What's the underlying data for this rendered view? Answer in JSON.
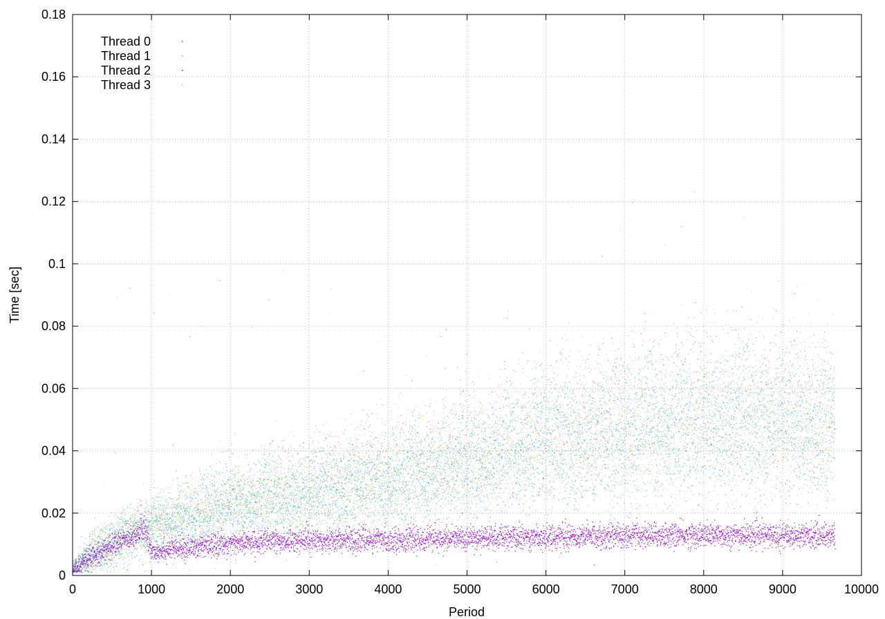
{
  "chart_data": {
    "type": "scatter",
    "xlabel": "Period",
    "ylabel": "Time [sec]",
    "xlim": [
      0,
      10000
    ],
    "ylim": [
      0,
      0.18
    ],
    "xticks": [
      "0",
      "1000",
      "2000",
      "3000",
      "4000",
      "5000",
      "6000",
      "7000",
      "8000",
      "9000",
      "10000"
    ],
    "yticks": [
      "0",
      "0.02",
      "0.04",
      "0.06",
      "0.08",
      "0.1",
      "0.12",
      "0.14",
      "0.16",
      "0.18"
    ],
    "grid": true,
    "legend_position": "top-left",
    "series": [
      {
        "name": "Thread 0",
        "color": "#009e73",
        "x_range": [
          0,
          9660
        ],
        "trend": [
          [
            0,
            0.002
          ],
          [
            300,
            0.008
          ],
          [
            1000,
            0.016
          ],
          [
            2000,
            0.022
          ],
          [
            3000,
            0.026
          ],
          [
            4000,
            0.03
          ],
          [
            5000,
            0.035
          ],
          [
            6000,
            0.042
          ],
          [
            7000,
            0.046
          ],
          [
            8000,
            0.048
          ],
          [
            9000,
            0.048
          ],
          [
            9660,
            0.047
          ]
        ]
      },
      {
        "name": "Thread 1",
        "color": "#56b4e9",
        "x_range": [
          0,
          9660
        ],
        "trend": [
          [
            0,
            0.002
          ],
          [
            300,
            0.008
          ],
          [
            1000,
            0.016
          ],
          [
            2000,
            0.021
          ],
          [
            3000,
            0.026
          ],
          [
            4000,
            0.031
          ],
          [
            5000,
            0.036
          ],
          [
            6000,
            0.043
          ],
          [
            7000,
            0.047
          ],
          [
            8000,
            0.05
          ],
          [
            9000,
            0.051
          ],
          [
            9660,
            0.048
          ]
        ]
      },
      {
        "name": "Thread 2",
        "color": "#9400d3",
        "x_range": [
          0,
          9660
        ],
        "trend": [
          [
            0,
            0.002
          ],
          [
            300,
            0.007
          ],
          [
            900,
            0.015
          ],
          [
            1000,
            0.008
          ],
          [
            1500,
            0.009
          ],
          [
            2000,
            0.0105
          ],
          [
            3000,
            0.0115
          ],
          [
            4000,
            0.0115
          ],
          [
            5000,
            0.012
          ],
          [
            6000,
            0.0125
          ],
          [
            7000,
            0.013
          ],
          [
            8000,
            0.013
          ],
          [
            9000,
            0.013
          ],
          [
            9660,
            0.013
          ]
        ]
      },
      {
        "name": "Thread 3",
        "color": "#e6b04a",
        "x_range": [
          0,
          9660
        ],
        "trend": [
          [
            0,
            0.002
          ],
          [
            300,
            0.008
          ],
          [
            1000,
            0.016
          ],
          [
            2000,
            0.022
          ],
          [
            3000,
            0.027
          ],
          [
            4000,
            0.032
          ],
          [
            5000,
            0.037
          ],
          [
            6000,
            0.044
          ],
          [
            7000,
            0.046
          ],
          [
            8000,
            0.047
          ],
          [
            9000,
            0.048
          ],
          [
            9660,
            0.046
          ]
        ]
      }
    ]
  }
}
